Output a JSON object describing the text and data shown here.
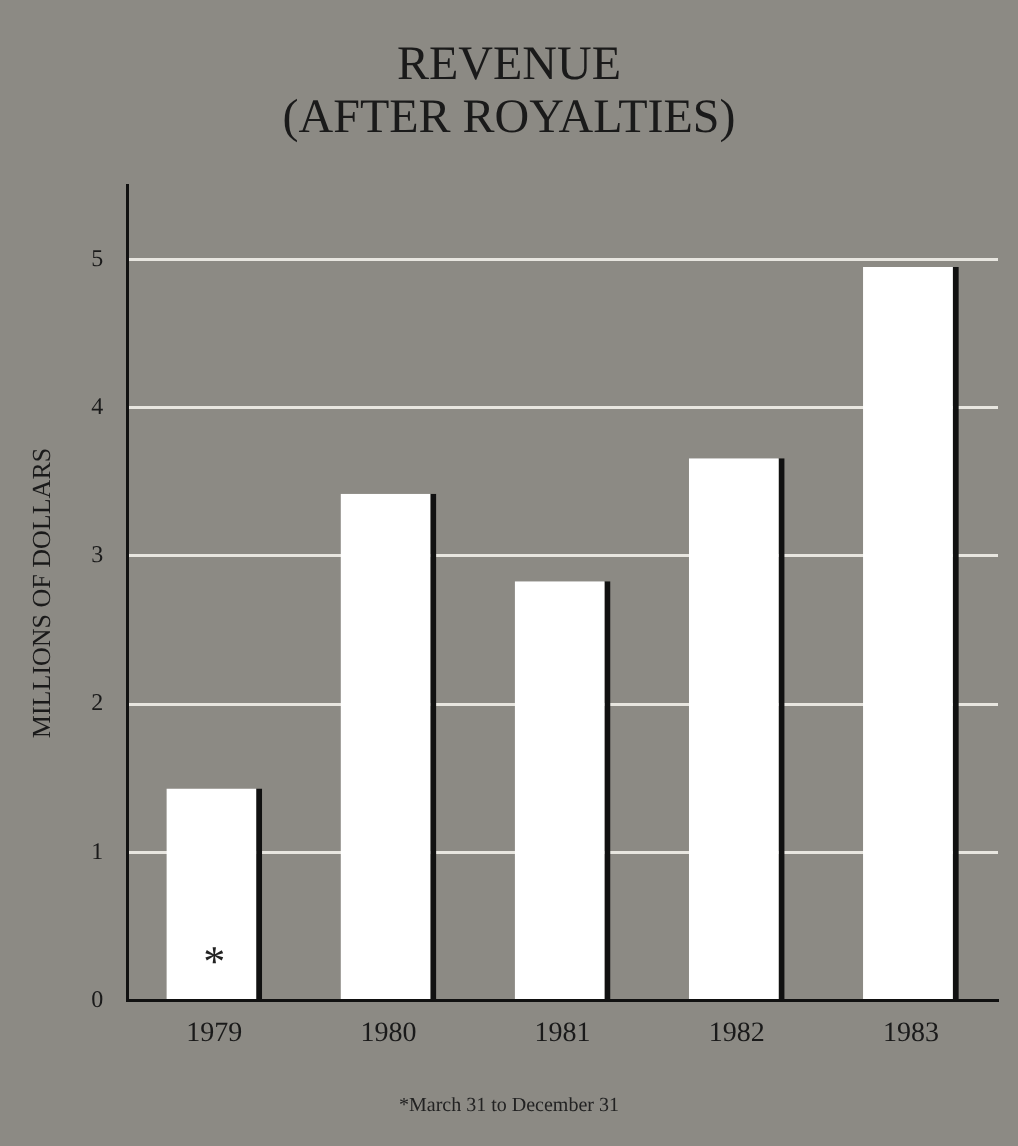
{
  "chart_data": {
    "type": "bar",
    "title": "REVENUE\n(AFTER ROYALTIES)",
    "ylabel": "MILLIONS OF DOLLARS",
    "categories": [
      "1979",
      "1980",
      "1981",
      "1982",
      "1983"
    ],
    "values": [
      1.43,
      3.42,
      2.83,
      3.66,
      4.95
    ],
    "color": "#ffffff",
    "ylim": [
      0,
      5.5
    ],
    "yticks": [
      0,
      1,
      2,
      3,
      4,
      5
    ],
    "grid": "y",
    "legend": false,
    "annotations": [
      "*",
      "*March 31 to December 31"
    ]
  }
}
